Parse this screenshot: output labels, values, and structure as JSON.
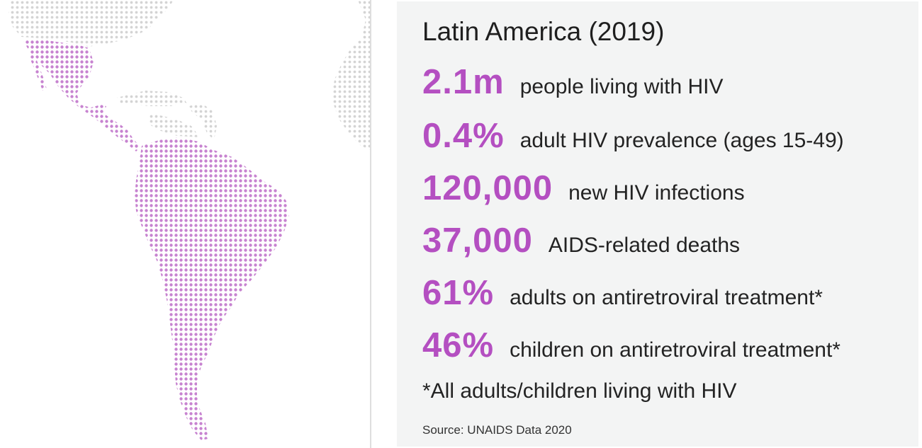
{
  "colors": {
    "accent": "#b44fc1",
    "map_highlight": "#c783d0",
    "map_other": "#d4d4d4",
    "panel_bg": "#f3f4f4"
  },
  "map": {
    "highlighted_region": "Latin America"
  },
  "panel": {
    "title": "Latin America (2019)",
    "stats": [
      {
        "value": "2.1m",
        "label": "people living with HIV"
      },
      {
        "value": "0.4%",
        "label": "adult HIV prevalence (ages 15-49)"
      },
      {
        "value": "120,000",
        "label": "new HIV infections"
      },
      {
        "value": "37,000",
        "label": "AIDS-related deaths"
      },
      {
        "value": "61%",
        "label": "adults on antiretroviral treatment*"
      },
      {
        "value": "46%",
        "label": "children on antiretroviral treatment*"
      }
    ],
    "footnote": "*All adults/children living with HIV",
    "source": "Source: UNAIDS Data 2020"
  }
}
